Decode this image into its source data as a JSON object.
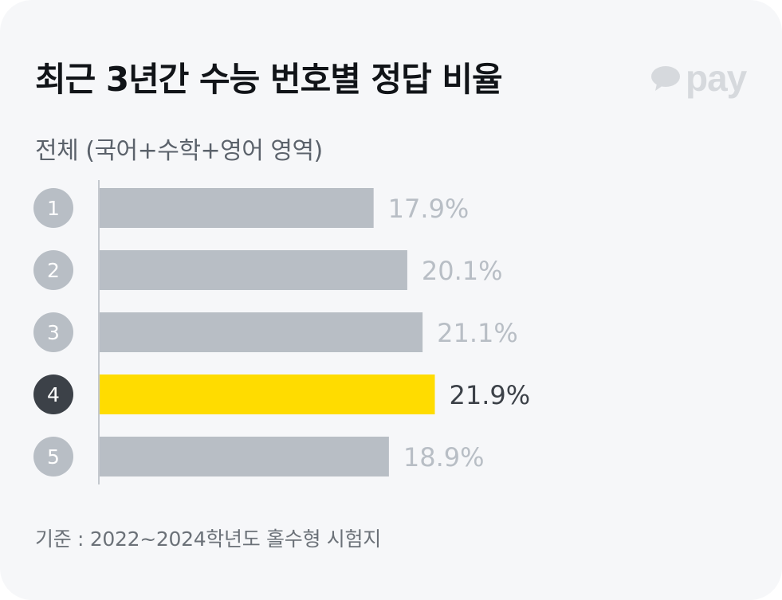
{
  "header": {
    "title": "최근 3년간 수능 번호별 정답 비율",
    "logo_text": "pay"
  },
  "subtitle": "전체 (국어+수학+영어 영역)",
  "footnote": "기준 : 2022~2024학년도 홀수형 시험지",
  "colors": {
    "bar_default": "#b8bec5",
    "bar_highlight": "#ffdc00",
    "badge_default": "#b8bec5",
    "badge_highlight": "#3c4148",
    "label_default": "#b8bec5",
    "label_highlight": "#3c4148"
  },
  "chart_data": {
    "type": "bar",
    "orientation": "horizontal",
    "categories": [
      "1",
      "2",
      "3",
      "4",
      "5"
    ],
    "values": [
      17.9,
      20.1,
      21.1,
      21.9,
      18.9
    ],
    "value_labels": [
      "17.9%",
      "20.1%",
      "21.1%",
      "21.9%",
      "18.9%"
    ],
    "highlight_index": 3,
    "title": "최근 3년간 수능 번호별 정답 비율",
    "xlabel": "",
    "ylabel": "",
    "xlim": [
      0,
      25
    ],
    "grid": false
  }
}
